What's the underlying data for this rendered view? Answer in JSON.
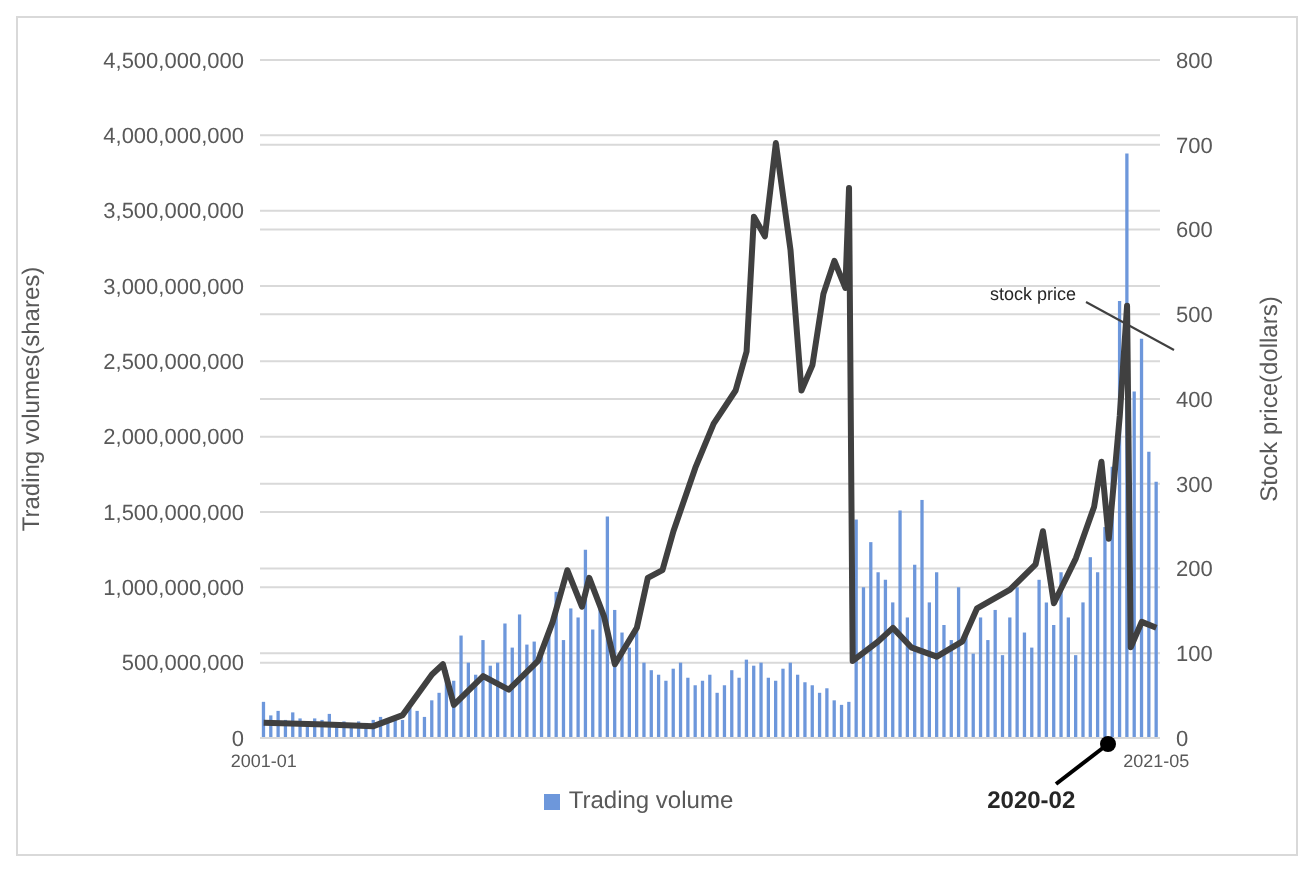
{
  "chart_data": {
    "type": "bar",
    "xlabel": null,
    "ylabel": "Trading volumes(shares)",
    "y2label": "Stock price(dollars)",
    "xlim": [
      "2000-12",
      "2021-06"
    ],
    "xticks": [
      "2001-01",
      "2021-05"
    ],
    "ylim": [
      0,
      4500000000
    ],
    "yticks": [
      0,
      {
        "value": 500000000,
        "label": "500,000,000"
      },
      {
        "value": 1000000000,
        "label": "1,000,000,000"
      },
      {
        "value": 1500000000,
        "label": "1,500,000,000"
      },
      {
        "value": 2000000000,
        "label": "2,000,000,000"
      },
      {
        "value": 2500000000,
        "label": "2,500,000,000"
      },
      {
        "value": 3000000000,
        "label": "3,000,000,000"
      },
      {
        "value": 3500000000,
        "label": "3,500,000,000"
      },
      {
        "value": 4000000000,
        "label": "4,000,000,000"
      },
      {
        "value": 4500000000,
        "label": "4,500,000,000"
      }
    ],
    "y2lim": [
      0,
      800
    ],
    "y2ticks": [
      0,
      100,
      200,
      300,
      400,
      500,
      600,
      700,
      800
    ],
    "grid": "y",
    "legend": "bottom",
    "annotations": [
      "stock price",
      {
        "text": "2020-02",
        "x": "2020-02",
        "y": 0
      }
    ],
    "series": [
      {
        "name": "Trading volume",
        "color": "#6d97db",
        "x": [
          "2001-01",
          "2001-03",
          "2001-05",
          "2001-07",
          "2001-09",
          "2001-11",
          "2002-01",
          "2002-03",
          "2002-05",
          "2002-07",
          "2002-09",
          "2002-11",
          "2003-01",
          "2003-03",
          "2003-05",
          "2003-07",
          "2003-09",
          "2003-11",
          "2004-01",
          "2004-03",
          "2004-05",
          "2004-07",
          "2004-09",
          "2004-11",
          "2005-01",
          "2005-03",
          "2005-05",
          "2005-07",
          "2005-09",
          "2005-11",
          "2006-01",
          "2006-03",
          "2006-05",
          "2006-07",
          "2006-09",
          "2006-11",
          "2007-01",
          "2007-03",
          "2007-05",
          "2007-07",
          "2007-09",
          "2007-11",
          "2008-01",
          "2008-03",
          "2008-05",
          "2008-07",
          "2008-09",
          "2008-11",
          "2009-01",
          "2009-03",
          "2009-05",
          "2009-07",
          "2009-09",
          "2009-11",
          "2010-01",
          "2010-03",
          "2010-05",
          "2010-07",
          "2010-09",
          "2010-11",
          "2011-01",
          "2011-03",
          "2011-05",
          "2011-07",
          "2011-09",
          "2011-11",
          "2012-01",
          "2012-03",
          "2012-05",
          "2012-07",
          "2012-09",
          "2012-11",
          "2013-01",
          "2013-03",
          "2013-05",
          "2013-07",
          "2013-09",
          "2013-11",
          "2014-01",
          "2014-03",
          "2014-05",
          "2014-07",
          "2014-09",
          "2014-11",
          "2015-01",
          "2015-03",
          "2015-05",
          "2015-07",
          "2015-09",
          "2015-11",
          "2016-01",
          "2016-03",
          "2016-05",
          "2016-07",
          "2016-09",
          "2016-11",
          "2017-01",
          "2017-03",
          "2017-05",
          "2017-07",
          "2017-09",
          "2017-11",
          "2018-01",
          "2018-03",
          "2018-05",
          "2018-07",
          "2018-09",
          "2018-11",
          "2019-01",
          "2019-03",
          "2019-05",
          "2019-07",
          "2019-09",
          "2019-11",
          "2020-01",
          "2020-03",
          "2020-05",
          "2020-07",
          "2020-09",
          "2020-11",
          "2021-01",
          "2021-03",
          "2021-05"
        ],
        "values": [
          240000000,
          150000000,
          180000000,
          120000000,
          170000000,
          130000000,
          110000000,
          130000000,
          120000000,
          160000000,
          100000000,
          110000000,
          90000000,
          110000000,
          100000000,
          120000000,
          140000000,
          110000000,
          130000000,
          120000000,
          200000000,
          180000000,
          140000000,
          250000000,
          300000000,
          450000000,
          380000000,
          680000000,
          500000000,
          420000000,
          650000000,
          480000000,
          500000000,
          760000000,
          600000000,
          820000000,
          620000000,
          640000000,
          600000000,
          700000000,
          970000000,
          650000000,
          860000000,
          800000000,
          1250000000,
          720000000,
          880000000,
          1470000000,
          850000000,
          700000000,
          600000000,
          750000000,
          500000000,
          450000000,
          420000000,
          380000000,
          460000000,
          500000000,
          400000000,
          350000000,
          380000000,
          420000000,
          300000000,
          350000000,
          450000000,
          400000000,
          520000000,
          480000000,
          500000000,
          400000000,
          380000000,
          460000000,
          500000000,
          420000000,
          370000000,
          350000000,
          300000000,
          330000000,
          250000000,
          220000000,
          240000000,
          1450000000,
          1000000000,
          1300000000,
          1100000000,
          1050000000,
          900000000,
          1510000000,
          800000000,
          1150000000,
          1580000000,
          900000000,
          1100000000,
          750000000,
          650000000,
          1000000000,
          700000000,
          560000000,
          800000000,
          650000000,
          850000000,
          550000000,
          800000000,
          1000000000,
          700000000,
          600000000,
          1050000000,
          900000000,
          750000000,
          1100000000,
          800000000,
          550000000,
          900000000,
          1200000000,
          1100000000,
          1400000000,
          1800000000,
          2900000000,
          3880000000,
          2300000000,
          2650000000,
          1900000000,
          1700000000
        ]
      },
      {
        "type": "line",
        "axis": "y2",
        "color": "#404040",
        "marker": "none",
        "line_style": "solid",
        "x": [
          "2001-01",
          "2002-06",
          "2003-07",
          "2004-03",
          "2004-11",
          "2005-02",
          "2005-05",
          "2006-01",
          "2006-08",
          "2007-04",
          "2007-08",
          "2007-12",
          "2008-04",
          "2008-06",
          "2008-10",
          "2009-01",
          "2009-07",
          "2009-10",
          "2010-02",
          "2010-05",
          "2010-11",
          "2011-04",
          "2011-10",
          "2012-01",
          "2012-03",
          "2012-06",
          "2012-09",
          "2013-01",
          "2013-04",
          "2013-07",
          "2013-10",
          "2014-01",
          "2014-04",
          "2014-05",
          "2014-06",
          "2015-01",
          "2015-05",
          "2015-10",
          "2016-05",
          "2016-12",
          "2017-04",
          "2018-01",
          "2018-08",
          "2018-10",
          "2019-01",
          "2019-07",
          "2019-12",
          "2020-02",
          "2020-04",
          "2020-07",
          "2020-09",
          "2020-10",
          "2021-01",
          "2021-05"
        ],
        "values": [
          18,
          16,
          14,
          27,
          75,
          87,
          39,
          73,
          57,
          91,
          137,
          198,
          155,
          189,
          144,
          87,
          130,
          189,
          198,
          244,
          319,
          371,
          410,
          456,
          615,
          592,
          702,
          576,
          410,
          440,
          524,
          563,
          531,
          649,
          91,
          114,
          130,
          107,
          96,
          114,
          153,
          175,
          205,
          244,
          159,
          212,
          273,
          326,
          235,
          380,
          510,
          107,
          137,
          130
        ]
      }
    ]
  }
}
